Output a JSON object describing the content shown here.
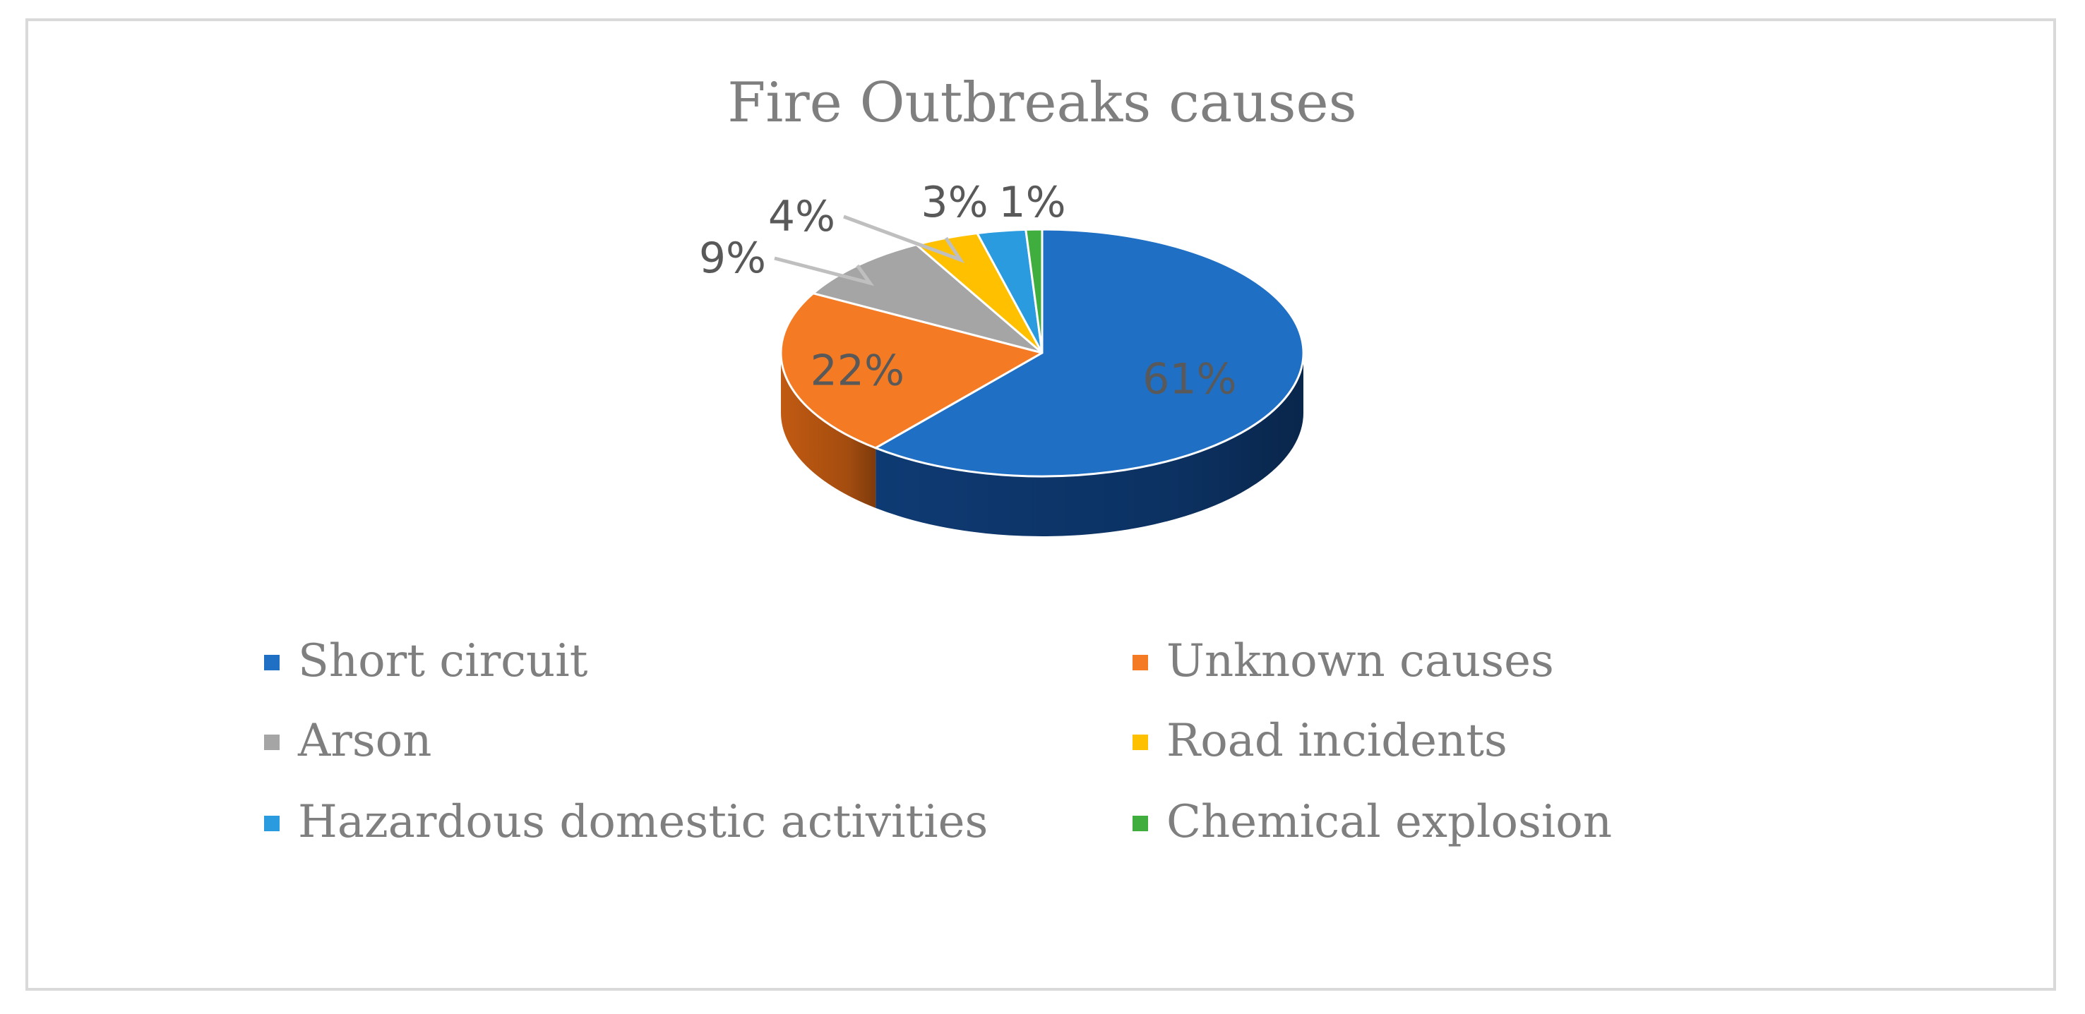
{
  "chart_data": {
    "type": "pie",
    "title": "Fire Outbreaks causes",
    "three_d": true,
    "legend_position": "bottom",
    "categories": [
      "Short circuit",
      "Unknown causes",
      "Arson",
      "Road incidents",
      "Hazardous domestic activities",
      "Chemical explosion"
    ],
    "values": [
      61,
      22,
      9,
      4,
      3,
      1
    ],
    "data_labels": [
      "61%",
      "22%",
      "9%",
      "4%",
      "3%",
      "1%"
    ],
    "colors": [
      "#1f6fc5",
      "#f47b24",
      "#a5a5a5",
      "#ffc000",
      "#2b9be0",
      "#3fae3f"
    ],
    "side_colors": [
      "#0e3a73",
      "#c15a12",
      "#7d7d7d",
      "#c99700",
      "#1a6ea3",
      "#2a7d2a"
    ]
  }
}
